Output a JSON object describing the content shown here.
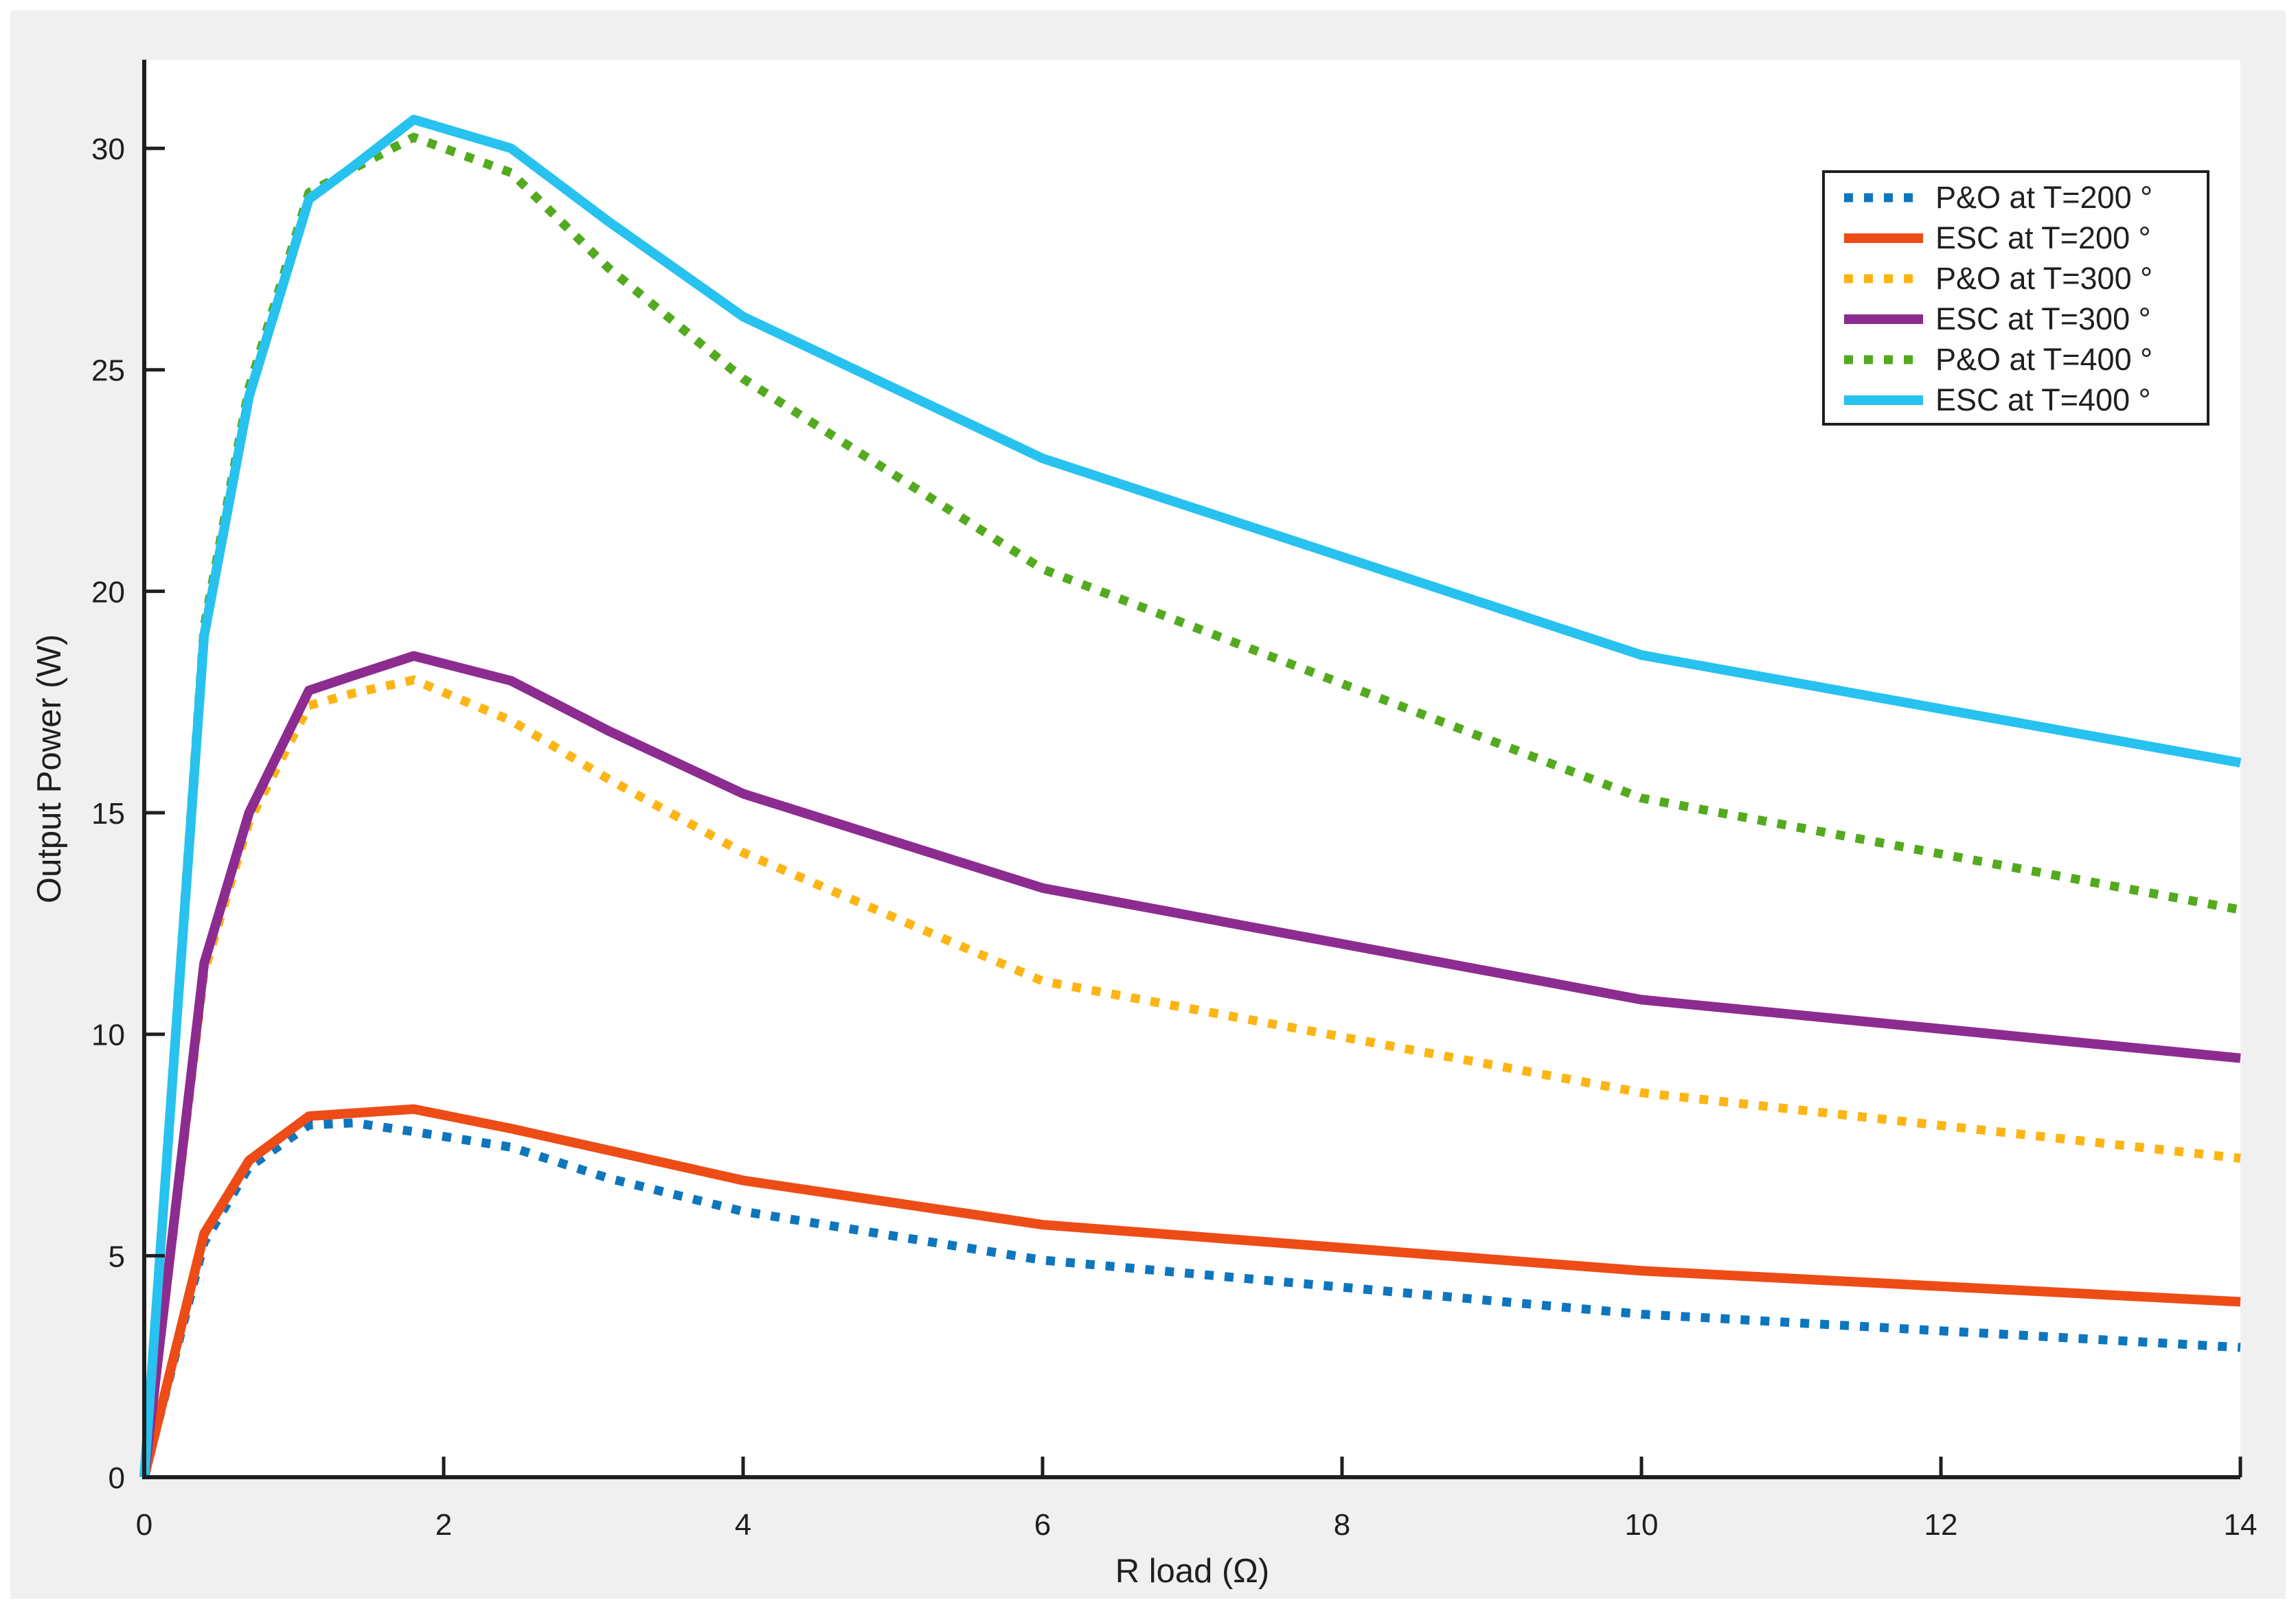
{
  "figure": {
    "background": "#f0f0f0",
    "plot_background": "#ffffff",
    "axis_color": "#1f1f1f",
    "legend_border_color": "#1f1f1f",
    "legend_background": "#ffffff"
  },
  "chart_data": {
    "type": "line",
    "title": "",
    "xlabel": "R load (Ω)",
    "ylabel": "Output Power (W)",
    "xlim": [
      0,
      14
    ],
    "ylim": [
      0,
      32
    ],
    "xticks": [
      0,
      2,
      4,
      6,
      8,
      10,
      12,
      14
    ],
    "yticks": [
      0,
      5,
      10,
      15,
      20,
      25,
      30
    ],
    "grid": false,
    "legend_position": "northeast",
    "x": [
      0,
      0.4,
      0.7,
      1.1,
      1.4,
      1.8,
      2.45,
      3.1,
      4,
      6,
      10,
      14
    ],
    "series": [
      {
        "name": "P&O at T=200 °",
        "color": "#0e76bd",
        "style": "dotted",
        "values": [
          0,
          5.3,
          7.0,
          7.95,
          8.0,
          7.8,
          7.45,
          6.75,
          6.0,
          4.9,
          3.68,
          2.93
        ]
      },
      {
        "name": "ESC at T=200 °",
        "color": "#ed4c17",
        "style": "solid",
        "values": [
          0,
          5.5,
          7.15,
          8.15,
          8.22,
          8.31,
          7.87,
          7.38,
          6.7,
          5.7,
          4.66,
          3.96
        ]
      },
      {
        "name": "P&O at T=300 °",
        "color": "#fcb514",
        "style": "dotted",
        "values": [
          0,
          11.4,
          14.8,
          17.42,
          17.7,
          18.0,
          17.08,
          15.76,
          14.1,
          11.2,
          8.68,
          7.2
        ]
      },
      {
        "name": "ESC at T=300 °",
        "color": "#8d2c90",
        "style": "solid",
        "values": [
          0,
          11.6,
          15.0,
          17.76,
          18.1,
          18.54,
          17.98,
          16.85,
          15.43,
          13.3,
          10.78,
          9.46
        ]
      },
      {
        "name": "P&O at T=400 °",
        "color": "#54aa1f",
        "style": "dotted",
        "values": [
          0,
          19.2,
          24.6,
          29.0,
          29.55,
          30.25,
          29.45,
          27.3,
          24.8,
          20.5,
          15.33,
          12.81
        ]
      },
      {
        "name": "ESC at T=400 °",
        "color": "#27c2ef",
        "style": "solid",
        "values": [
          0,
          19.0,
          24.4,
          28.85,
          29.6,
          30.65,
          30.0,
          28.35,
          26.2,
          23.0,
          18.56,
          16.13
        ]
      }
    ]
  }
}
